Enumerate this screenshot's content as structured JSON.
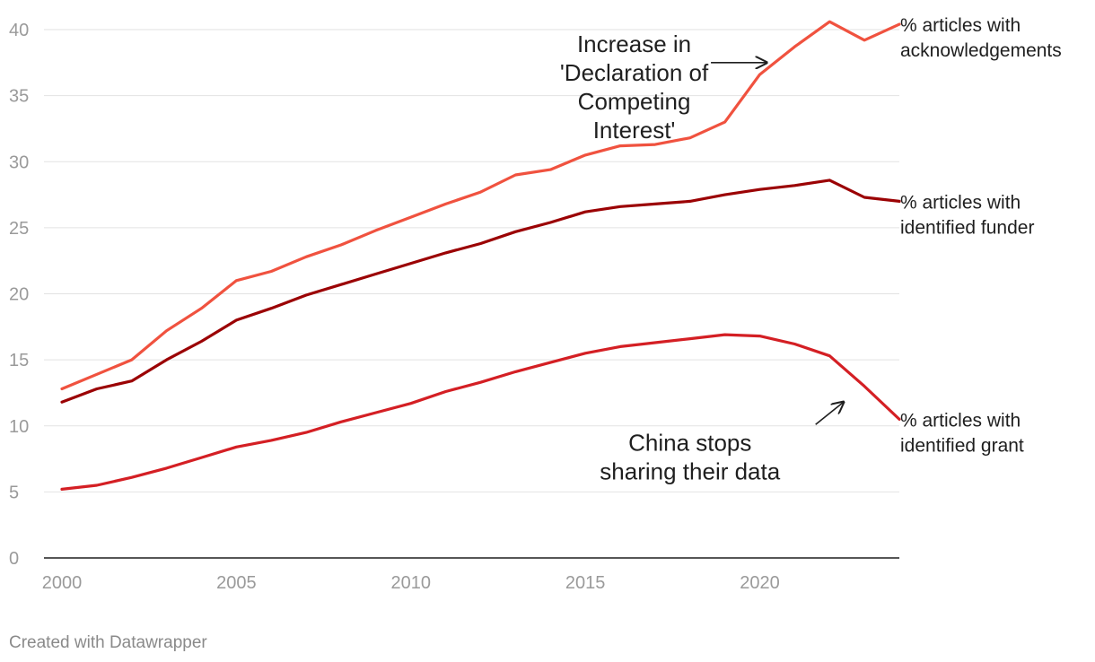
{
  "chart_data": {
    "type": "line",
    "title": "",
    "xlabel": "",
    "ylabel": "",
    "ylim": [
      0,
      40
    ],
    "xlim": [
      2000,
      2024
    ],
    "y_ticks": [
      "0",
      "5",
      "10",
      "15",
      "20",
      "25",
      "30",
      "35",
      "40"
    ],
    "x_ticks": [
      "2000",
      "2005",
      "2010",
      "2015",
      "2020"
    ],
    "grid": true,
    "x": [
      2000,
      2001,
      2002,
      2003,
      2004,
      2005,
      2006,
      2007,
      2008,
      2009,
      2010,
      2011,
      2012,
      2013,
      2014,
      2015,
      2016,
      2017,
      2018,
      2019,
      2020,
      2021,
      2022,
      2023,
      2024
    ],
    "series": [
      {
        "name": "acknowledgements",
        "label_lines": [
          "% articles with",
          "acknowledgements"
        ],
        "color": "#f0523f",
        "values": [
          12.8,
          13.9,
          15.0,
          17.2,
          18.9,
          21.0,
          21.7,
          22.8,
          23.7,
          24.8,
          25.8,
          26.8,
          27.7,
          29.0,
          29.4,
          30.5,
          31.2,
          31.3,
          31.8,
          33.0,
          36.6,
          38.7,
          40.6,
          39.2,
          40.4
        ]
      },
      {
        "name": "identified funder",
        "label_lines": [
          "% articles with",
          "identified funder"
        ],
        "color": "#9b0204",
        "values": [
          11.8,
          12.8,
          13.4,
          15.0,
          16.4,
          18.0,
          18.9,
          19.9,
          20.7,
          21.5,
          22.3,
          23.1,
          23.8,
          24.7,
          25.4,
          26.2,
          26.6,
          26.8,
          27.0,
          27.5,
          27.9,
          28.2,
          28.6,
          27.3,
          27.0
        ]
      },
      {
        "name": "identified grant",
        "label_lines": [
          "% articles with",
          "identified grant"
        ],
        "color": "#d41f24",
        "values": [
          5.2,
          5.5,
          6.1,
          6.8,
          7.6,
          8.4,
          8.9,
          9.5,
          10.3,
          11.0,
          11.7,
          12.6,
          13.3,
          14.1,
          14.8,
          15.5,
          16.0,
          16.3,
          16.6,
          16.9,
          16.8,
          16.2,
          15.3,
          13.0,
          10.5
        ]
      }
    ],
    "annotations": [
      {
        "name": "declaration-annotation",
        "lines": [
          "Increase in",
          "'Declaration of",
          "Competing",
          "Interest'"
        ],
        "arrow_from": [
          2018.6,
          37.5
        ],
        "arrow_to": [
          2020.2,
          37.5
        ],
        "text_at": [
          2016.4,
          38.3
        ]
      },
      {
        "name": "china-annotation",
        "lines": [
          "China stops",
          "sharing their data"
        ],
        "arrow_from": [
          2021.6,
          10.1
        ],
        "arrow_to": [
          2022.4,
          11.8
        ],
        "text_at": [
          2018.0,
          8.1
        ]
      }
    ]
  },
  "footer": {
    "credit": "Created with Datawrapper"
  }
}
